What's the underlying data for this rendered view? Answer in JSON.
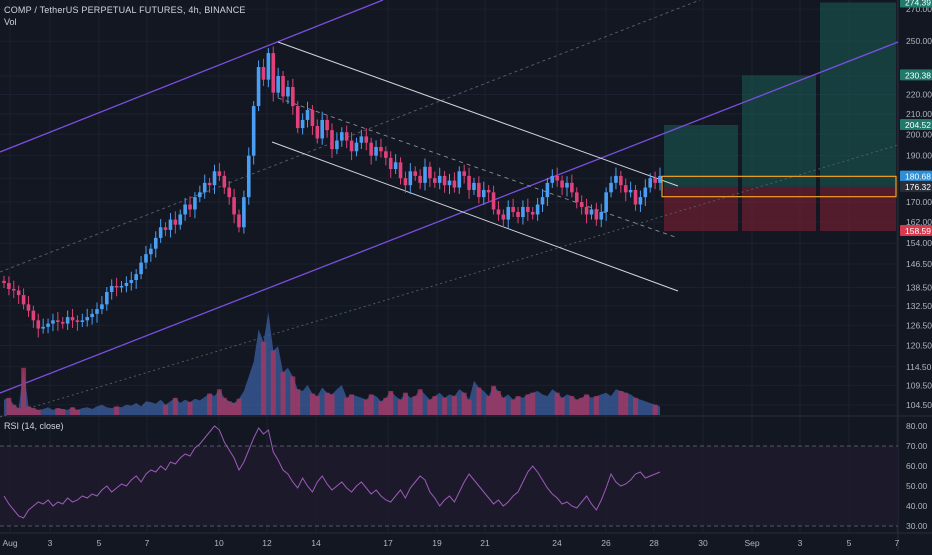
{
  "header": {
    "title": "COMP / TetherUS PERPETUAL FUTURES, 4h, BINANCE",
    "volume_label": "Vol",
    "rsi_label": "RSI (14, close)"
  },
  "colors": {
    "background": "#131722",
    "up": "#4a9ff5",
    "down": "#e0417a",
    "channel": "#7b4fe0",
    "channel_upper_line": "#3d6fd6",
    "downtrend": "#d1d4dc",
    "target_zone": "#1b5e55",
    "stop_zone": "#6e2030",
    "entry_box": "#f0a020",
    "rsi_line": "#9c5ab8",
    "rsi_band": "#1e1a2c"
  },
  "chart_data": [
    {
      "type": "candlestick",
      "symbol": "COMP / TetherUS PERPETUAL FUTURES",
      "interval": "4h",
      "exchange": "BINANCE",
      "y_scale": "log",
      "ylim": [
        102,
        276
      ],
      "x_ticks": [
        "Aug",
        "3",
        "5",
        "7",
        "10",
        "12",
        "14",
        "17",
        "19",
        "21",
        "24",
        "26",
        "28",
        "30",
        "Sep",
        "3",
        "5",
        "7"
      ],
      "y_ticks": [
        104.5,
        109.5,
        114.5,
        120.5,
        126.5,
        132.5,
        138.5,
        146.5,
        154.0,
        162.0,
        170.0,
        180.0,
        190.0,
        200.0,
        210.0,
        220.0,
        230.0,
        250.0,
        270.0
      ],
      "price_labels": [
        {
          "value": "274.39",
          "kind": "target"
        },
        {
          "value": "230.38",
          "kind": "target"
        },
        {
          "value": "204.52",
          "kind": "target"
        },
        {
          "value": "180.68",
          "kind": "current"
        },
        {
          "value": "176.32",
          "kind": "entry"
        },
        {
          "value": "158.59",
          "kind": "stop"
        }
      ],
      "series_close": [
        140,
        138,
        137.5,
        136,
        133,
        131,
        128,
        125.5,
        126,
        127,
        128,
        127.5,
        127,
        129,
        128,
        127.5,
        128,
        129,
        130,
        131.5,
        133,
        137,
        139,
        138.5,
        139,
        140,
        141,
        143,
        147,
        150,
        152,
        156,
        160,
        159,
        163,
        161,
        165,
        169,
        167,
        172,
        174,
        178,
        177,
        183,
        181,
        176,
        172,
        165,
        160,
        172,
        190,
        214,
        235,
        228,
        243,
        221,
        230,
        219,
        224,
        214,
        203,
        207,
        212,
        204,
        198,
        207,
        202,
        193,
        197,
        201,
        197,
        192,
        196,
        199,
        196,
        190,
        194,
        192,
        189,
        184,
        187,
        180,
        177,
        183,
        181,
        178,
        185,
        180,
        178,
        181,
        177,
        179,
        176,
        183,
        181,
        175,
        178,
        172,
        175,
        174,
        167,
        165,
        163,
        168,
        166,
        164,
        168,
        166,
        165,
        169,
        172,
        178,
        181,
        179,
        176,
        178,
        174,
        170,
        168,
        165,
        167,
        163,
        166,
        174,
        178,
        181,
        177,
        174,
        175,
        169,
        172,
        176,
        180,
        178,
        181
      ]
    },
    {
      "type": "area",
      "name": "Vol",
      "values": [
        18,
        20,
        12,
        8,
        55,
        10,
        8,
        6,
        7,
        9,
        6,
        8,
        7,
        6,
        9,
        6,
        8,
        9,
        7,
        10,
        12,
        9,
        8,
        10,
        9,
        12,
        11,
        14,
        10,
        16,
        15,
        13,
        18,
        12,
        16,
        20,
        14,
        18,
        15,
        19,
        17,
        21,
        25,
        22,
        30,
        20,
        16,
        14,
        19,
        28,
        45,
        62,
        100,
        85,
        120,
        75,
        80,
        50,
        55,
        45,
        30,
        28,
        35,
        25,
        22,
        32,
        26,
        24,
        30,
        35,
        20,
        24,
        22,
        20,
        18,
        24,
        22,
        16,
        20,
        28,
        22,
        18,
        26,
        20,
        22,
        30,
        24,
        18,
        22,
        26,
        20,
        24,
        22,
        30,
        26,
        18,
        40,
        32,
        28,
        22,
        34,
        28,
        20,
        24,
        18,
        22,
        20,
        24,
        26,
        28,
        24,
        22,
        30,
        26,
        20,
        24,
        22,
        18,
        20,
        24,
        20,
        22,
        24,
        26,
        22,
        30,
        28,
        26,
        24,
        20,
        18,
        16,
        14,
        12,
        10
      ]
    },
    {
      "type": "line",
      "name": "RSI (14, close)",
      "ylim": [
        27,
        84
      ],
      "y_ticks": [
        30.0,
        40.0,
        50.0,
        60.0,
        70.0,
        80.0
      ],
      "band": [
        30,
        70
      ],
      "values": [
        45,
        41,
        38,
        35,
        34,
        38,
        40,
        42,
        41,
        43,
        40,
        42,
        41,
        44,
        42,
        43,
        45,
        44,
        46,
        45,
        48,
        50,
        47,
        49,
        51,
        50,
        53,
        55,
        52,
        56,
        58,
        57,
        60,
        58,
        62,
        61,
        64,
        66,
        65,
        69,
        71,
        74,
        77,
        80,
        78,
        72,
        68,
        64,
        58,
        62,
        68,
        74,
        79,
        76,
        78,
        67,
        63,
        58,
        56,
        52,
        49,
        54,
        50,
        47,
        52,
        55,
        51,
        48,
        50,
        52,
        49,
        47,
        50,
        52,
        49,
        46,
        48,
        45,
        43,
        42,
        45,
        48,
        44,
        49,
        52,
        55,
        53,
        47,
        44,
        40,
        43,
        45,
        42,
        47,
        52,
        56,
        53,
        50,
        47,
        44,
        41,
        43,
        40,
        42,
        45,
        47,
        52,
        57,
        60,
        57,
        53,
        49,
        46,
        44,
        41,
        42,
        40,
        39,
        42,
        45,
        41,
        38,
        43,
        49,
        56,
        52,
        50,
        51,
        53,
        56,
        57,
        54,
        55,
        56,
        57
      ]
    }
  ]
}
